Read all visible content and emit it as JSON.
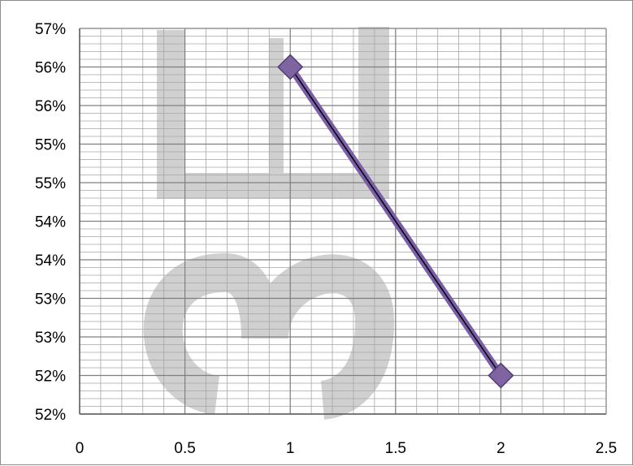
{
  "chart_data": {
    "type": "scatter",
    "title": "",
    "xlabel": "",
    "ylabel": "",
    "x_ticks": [
      "0",
      "0.5",
      "1",
      "1.5",
      "2",
      "2.5"
    ],
    "y_ticks": [
      "57%",
      "56%",
      "56%",
      "55%",
      "55%",
      "54%",
      "54%",
      "53%",
      "53%",
      "52%",
      "52%"
    ],
    "xlim": [
      0,
      2.5
    ],
    "ylim": [
      0.5175,
      0.5675
    ],
    "x_major_step": 0.5,
    "x_minor_step": 0.1,
    "y_major_step": 0.005,
    "y_minor_step": 0.001,
    "grid": true,
    "legend": "none",
    "series": [
      {
        "x": [
          1,
          2
        ],
        "y": [
          0.5625,
          0.5225
        ],
        "marker": "diamond",
        "marker_color": "#8064a2",
        "line_color": "#7a5fa8",
        "line_core_color": "#000000"
      }
    ]
  },
  "watermark": {
    "text": "Ш3",
    "color": "#c8c8c8"
  }
}
